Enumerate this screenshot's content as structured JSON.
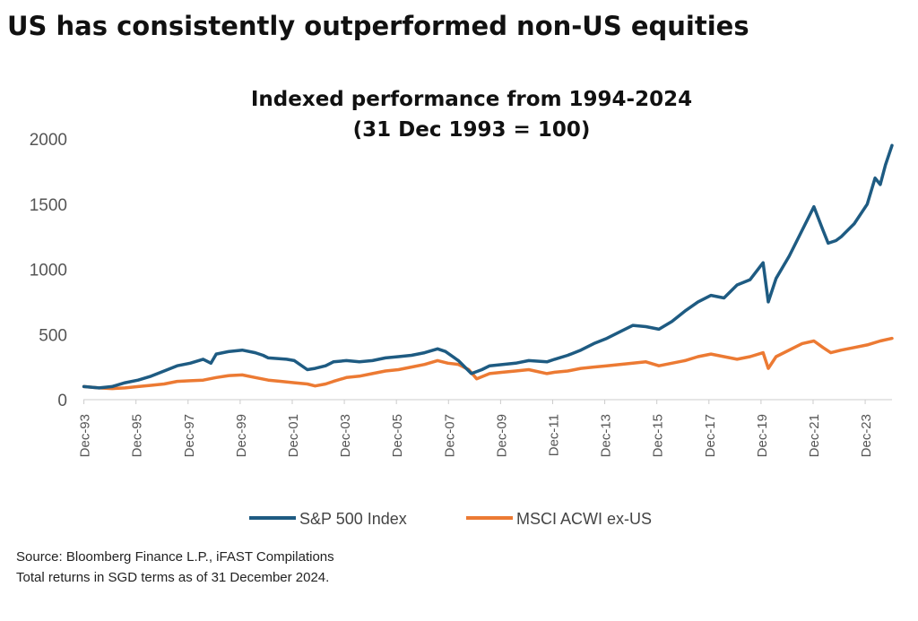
{
  "headline": "US has consistently outperformed non-US equities",
  "source": {
    "line1": "Source: Bloomberg Finance L.P., iFAST Compilations",
    "line2": "Total returns in SGD terms as of 31 December 2024."
  },
  "colors": {
    "sp500": "#1e5b82",
    "msci": "#ec7a33",
    "axis": "#cccccc",
    "text": "#555555"
  },
  "chart_data": {
    "type": "line",
    "title": "Indexed performance from 1994-2024",
    "subtitle": "(31 Dec 1993 = 100)",
    "xlabel": "",
    "ylabel": "",
    "xlim": [
      1993.9,
      2024.95
    ],
    "ylim": [
      0,
      2000
    ],
    "grid": false,
    "legend_position": "bottom",
    "y_ticks": [
      0,
      500,
      1000,
      1500,
      2000
    ],
    "y_tick_labels": [
      "0",
      "500",
      "1000",
      "1500",
      "2000"
    ],
    "x_ticks": [
      1993.92,
      1995.92,
      1997.92,
      1999.92,
      2001.92,
      2003.92,
      2005.92,
      2007.92,
      2009.92,
      2011.92,
      2013.92,
      2015.92,
      2017.92,
      2019.92,
      2021.92,
      2023.92
    ],
    "x_tick_labels": [
      "Dec-93",
      "Dec-95",
      "Dec-97",
      "Dec-99",
      "Dec-01",
      "Dec-03",
      "Dec-05",
      "Dec-07",
      "Dec-09",
      "Dec-11",
      "Dec-13",
      "Dec-15",
      "Dec-17",
      "Dec-19",
      "Dec-21",
      "Dec-23"
    ],
    "series": [
      {
        "name": "S&P 500 Index",
        "x": [
          1993.92,
          1994.5,
          1995.0,
          1995.5,
          1996.0,
          1996.5,
          1997.0,
          1997.5,
          1998.0,
          1998.5,
          1998.8,
          1999.0,
          1999.5,
          2000.0,
          2000.5,
          2000.8,
          2001.0,
          2001.7,
          2002.0,
          2002.5,
          2002.8,
          2003.2,
          2003.5,
          2004.0,
          2004.5,
          2005.0,
          2005.5,
          2006.0,
          2006.5,
          2007.0,
          2007.5,
          2007.8,
          2008.3,
          2008.8,
          2009.2,
          2009.5,
          2010.0,
          2010.5,
          2011.0,
          2011.7,
          2012.0,
          2012.5,
          2013.0,
          2013.5,
          2014.0,
          2014.5,
          2015.0,
          2015.5,
          2016.0,
          2016.5,
          2017.0,
          2017.5,
          2018.0,
          2018.5,
          2019.0,
          2019.5,
          2020.0,
          2020.2,
          2020.5,
          2021.0,
          2021.5,
          2021.95,
          2022.3,
          2022.5,
          2022.8,
          2023.0,
          2023.5,
          2024.0,
          2024.3,
          2024.5,
          2024.7,
          2024.95
        ],
        "values": [
          100,
          90,
          100,
          130,
          150,
          180,
          220,
          260,
          280,
          310,
          280,
          350,
          370,
          380,
          360,
          340,
          320,
          310,
          300,
          230,
          240,
          260,
          290,
          300,
          290,
          300,
          320,
          330,
          340,
          360,
          390,
          370,
          300,
          200,
          230,
          260,
          270,
          280,
          300,
          290,
          310,
          340,
          380,
          430,
          470,
          520,
          570,
          560,
          540,
          600,
          680,
          750,
          800,
          780,
          880,
          920,
          1050,
          750,
          930,
          1100,
          1300,
          1480,
          1300,
          1200,
          1220,
          1250,
          1350,
          1500,
          1700,
          1650,
          1800,
          1950
        ]
      },
      {
        "name": "MSCI ACWI ex-US",
        "x": [
          1993.92,
          1994.5,
          1995.0,
          1995.5,
          1996.0,
          1996.5,
          1997.0,
          1997.5,
          1998.0,
          1998.5,
          1999.0,
          1999.5,
          2000.0,
          2000.5,
          2001.0,
          2001.5,
          2002.0,
          2002.5,
          2002.8,
          2003.2,
          2003.5,
          2004.0,
          2004.5,
          2005.0,
          2005.5,
          2006.0,
          2006.5,
          2007.0,
          2007.5,
          2007.9,
          2008.3,
          2008.7,
          2009.0,
          2009.5,
          2010.0,
          2010.5,
          2011.0,
          2011.7,
          2012.0,
          2012.5,
          2013.0,
          2013.5,
          2014.0,
          2014.5,
          2015.0,
          2015.5,
          2016.0,
          2016.5,
          2017.0,
          2017.5,
          2018.0,
          2018.5,
          2019.0,
          2019.5,
          2020.0,
          2020.2,
          2020.5,
          2021.0,
          2021.5,
          2021.95,
          2022.3,
          2022.6,
          2023.0,
          2023.5,
          2024.0,
          2024.5,
          2024.95
        ],
        "values": [
          100,
          90,
          85,
          90,
          100,
          110,
          120,
          140,
          145,
          150,
          170,
          185,
          190,
          170,
          150,
          140,
          130,
          120,
          105,
          120,
          140,
          170,
          180,
          200,
          220,
          230,
          250,
          270,
          300,
          280,
          270,
          230,
          160,
          200,
          210,
          220,
          230,
          200,
          210,
          220,
          240,
          250,
          260,
          270,
          280,
          290,
          260,
          280,
          300,
          330,
          350,
          330,
          310,
          330,
          360,
          240,
          330,
          380,
          430,
          450,
          400,
          360,
          380,
          400,
          420,
          450,
          470
        ]
      }
    ]
  }
}
